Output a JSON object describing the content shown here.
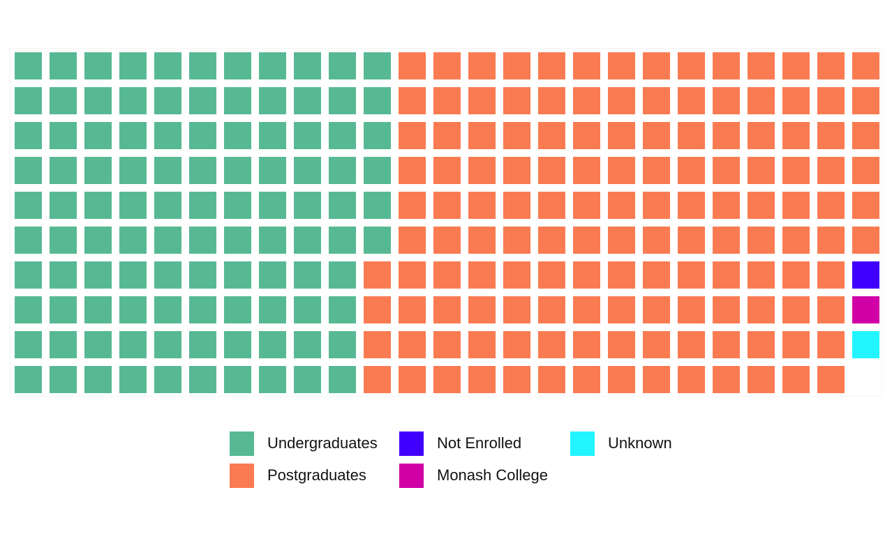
{
  "chart_data": {
    "type": "waffle",
    "title": "",
    "xlabel": "",
    "ylabel": "",
    "grid": {
      "rows": 10,
      "columns": 25
    },
    "fill_order": "column-major, top-to-bottom, left-to-right",
    "categories": [
      "Undergraduates",
      "Postgraduates",
      "Not Enrolled",
      "Monash College",
      "Unknown"
    ],
    "values": [
      106,
      140,
      1,
      1,
      1
    ],
    "colors": [
      "#57b993",
      "#fa7b51",
      "#3f00ff",
      "#d000a6",
      "#22f5ff"
    ],
    "legend_position": "bottom"
  }
}
